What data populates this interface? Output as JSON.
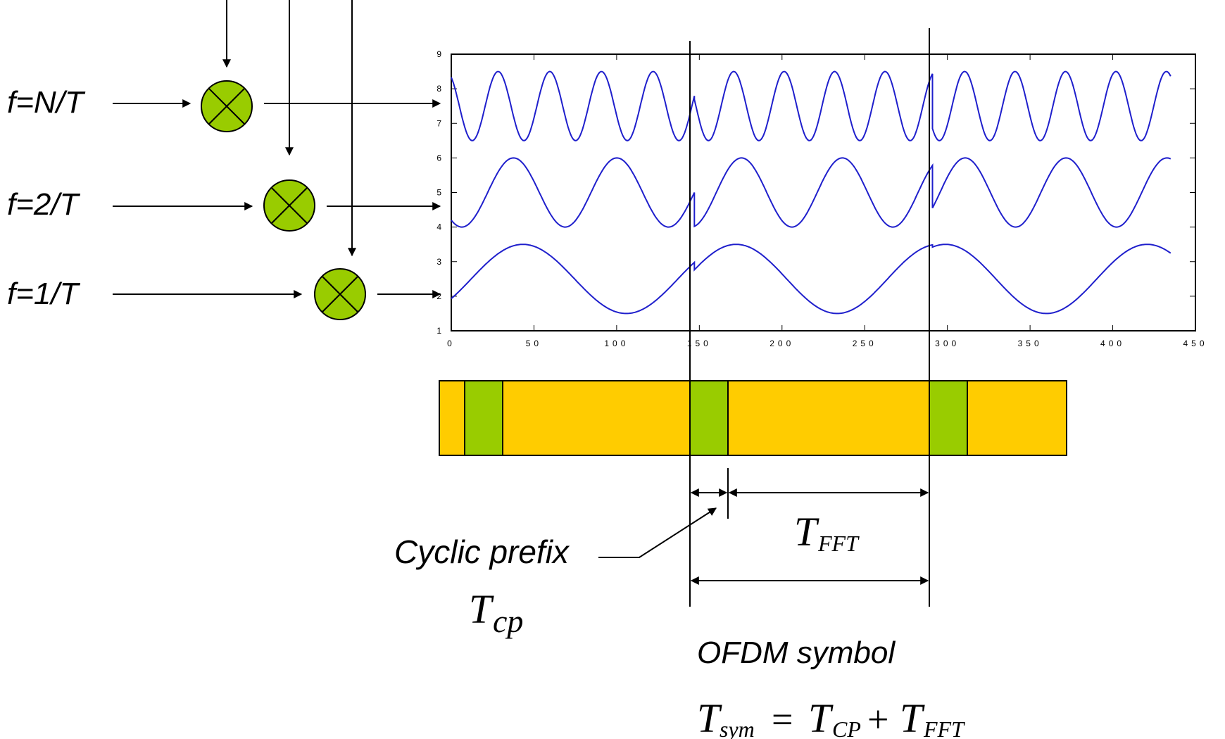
{
  "labels": {
    "freq_n": "f=N/T",
    "freq_2": "f=2/T",
    "freq_1": "f=1/T",
    "cyclic_prefix": "Cyclic prefix",
    "tcp_main": "T",
    "tcp_sub": "cp",
    "tfft_main": "T",
    "tfft_sub": "FFT",
    "ofdm_symbol": "OFDM symbol",
    "tsym_T1": "T",
    "tsym_sub1": "sym",
    "tsym_eq": "=",
    "tsym_T2": "T",
    "tsym_sub2": "CP",
    "tsym_plus": "+",
    "tsym_T3": "T",
    "tsym_sub3": "FFT"
  },
  "colors": {
    "wave": "#1f1fcc",
    "mixer_fill": "#99cc00",
    "frame_fill": "#ffcc00",
    "cp_fill": "#99cc00",
    "line": "#000000"
  },
  "chart_data": {
    "type": "line",
    "xlim": [
      0,
      450
    ],
    "ylim": [
      1,
      9
    ],
    "x_ticks": [
      "0",
      "50",
      "100",
      "150",
      "200",
      "250",
      "300",
      "350",
      "400",
      "450"
    ],
    "y_ticks": [
      "1",
      "2",
      "3",
      "4",
      "5",
      "6",
      "7",
      "8",
      "9"
    ],
    "x_range": [
      0,
      435
    ],
    "symbol_boundaries": [
      0,
      147,
      291,
      435
    ],
    "cp_length": 22,
    "series": [
      {
        "offset": 7.5,
        "amplitude": 1.0,
        "cycles_per_fft": 4
      },
      {
        "offset": 5.0,
        "amplitude": 1.0,
        "cycles_per_fft": 2
      },
      {
        "offset": 2.5,
        "amplitude": 1.0,
        "cycles_per_fft": 1
      }
    ]
  }
}
